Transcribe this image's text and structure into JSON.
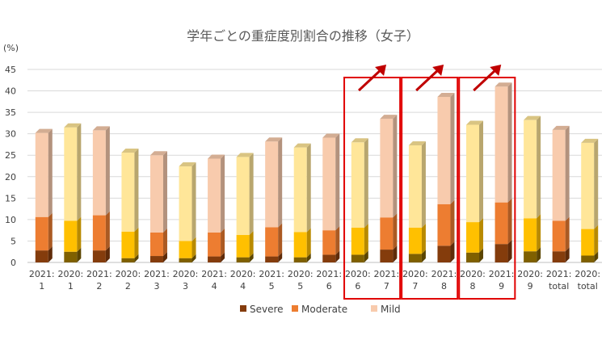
{
  "chart_data": {
    "type": "bar",
    "stacked": true,
    "title": "学年ごとの重症度別割合の推移（女子）",
    "ylabel": "(%)",
    "ylim": [
      0,
      45
    ],
    "yticks": [
      0,
      5,
      10,
      15,
      20,
      25,
      30,
      35,
      40,
      45
    ],
    "grid": true,
    "legend_position": "bottom",
    "categories": [
      [
        "2021:",
        "1"
      ],
      [
        "2020:",
        "1"
      ],
      [
        "2021:",
        "2"
      ],
      [
        "2020:",
        "2"
      ],
      [
        "2021:",
        "3"
      ],
      [
        "2020:",
        "3"
      ],
      [
        "2021:",
        "4"
      ],
      [
        "2020:",
        "4"
      ],
      [
        "2021:",
        "5"
      ],
      [
        "2020:",
        "5"
      ],
      [
        "2021:",
        "6"
      ],
      [
        "2020:",
        "6"
      ],
      [
        "2021:",
        "7"
      ],
      [
        "2020:",
        "7"
      ],
      [
        "2021:",
        "8"
      ],
      [
        "2020:",
        "8"
      ],
      [
        "2021:",
        "9"
      ],
      [
        "2020:",
        "9"
      ],
      [
        "2021:",
        "total"
      ],
      [
        "2020:",
        "total"
      ]
    ],
    "series": [
      {
        "name": "Severe",
        "color": "#843C0C",
        "color2020": "#7F6000",
        "values": [
          2.8,
          2.5,
          2.8,
          1.0,
          1.5,
          1.0,
          1.4,
          1.2,
          1.4,
          1.2,
          1.8,
          1.8,
          3.0,
          2.0,
          3.9,
          2.3,
          4.3,
          2.6,
          2.6,
          1.6
        ]
      },
      {
        "name": "Moderate",
        "color": "#ED7D31",
        "color2020": "#FFC000",
        "values": [
          7.8,
          7.2,
          8.2,
          6.2,
          5.5,
          4.0,
          5.6,
          5.2,
          6.8,
          5.9,
          5.7,
          6.3,
          7.5,
          6.1,
          9.7,
          7.1,
          9.7,
          7.7,
          7.1,
          6.2
        ]
      },
      {
        "name": "Mild",
        "color": "#F8CBAD",
        "color2020": "#FFE699",
        "values": [
          19.6,
          21.8,
          19.8,
          18.4,
          18.0,
          17.4,
          17.2,
          18.2,
          20.0,
          19.7,
          21.6,
          19.9,
          23.0,
          19.2,
          25.0,
          22.7,
          27.0,
          22.9,
          21.2,
          20.1
        ]
      }
    ],
    "highlight_groups": [
      [
        11,
        12
      ],
      [
        13,
        14
      ],
      [
        15,
        16
      ]
    ],
    "highlight_color": "#E00000",
    "arrow_color": "#C00000"
  }
}
